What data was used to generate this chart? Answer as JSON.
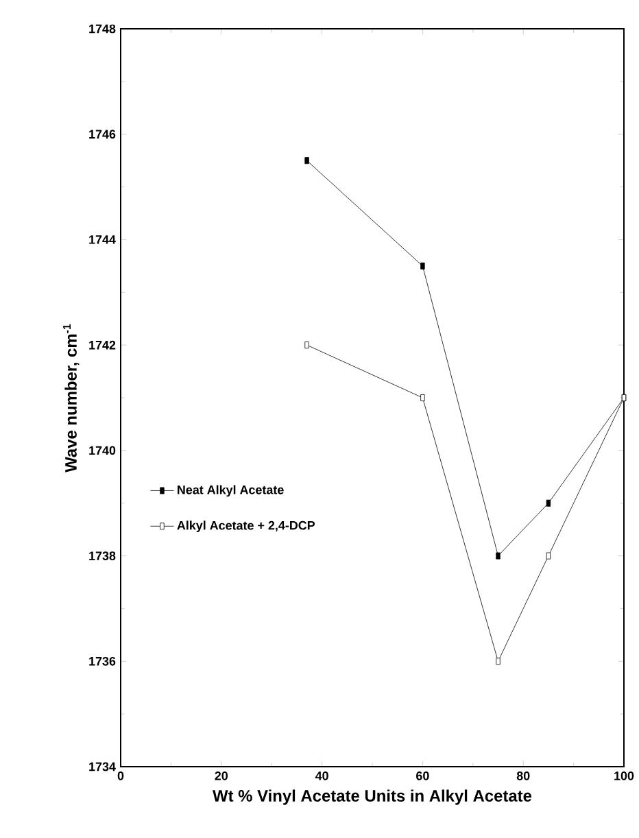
{
  "chart_data": {
    "type": "line",
    "xlabel": "Wt % Vinyl Acetate Units in Alkyl Acetate",
    "ylabel": "Wave number, cm$^{-1}$",
    "x": [
      37,
      60,
      75,
      85,
      100
    ],
    "series": [
      {
        "name": "Neat Alkyl Acetate",
        "color": "#000000",
        "values": [
          1745.5,
          1743.5,
          1738,
          1739,
          1741
        ]
      },
      {
        "name": "Alkyl Acetate + 2,4-DCP",
        "color": "#000000",
        "values": [
          1742,
          1741,
          1736,
          1738,
          1741
        ]
      }
    ],
    "xlim": [
      0,
      100
    ],
    "xticks": [
      0,
      20,
      40,
      60,
      80,
      100
    ],
    "ylim": [
      1734,
      1748
    ],
    "yticks": [
      1734,
      1736,
      1738,
      1740,
      1742,
      1744,
      1746,
      1748
    ],
    "grid": false,
    "legend": "left",
    "marker": "square",
    "line_style": "solid"
  }
}
